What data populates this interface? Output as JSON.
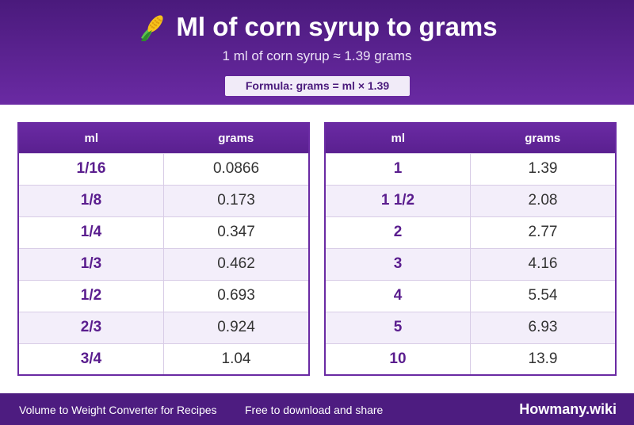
{
  "header": {
    "title": "Ml of corn syrup to grams",
    "icon": "corn-icon",
    "subtitle": "1 ml of corn syrup ≈ 1.39 grams",
    "formula": "Formula: grams = ml × 1.39"
  },
  "tables": {
    "left": {
      "headers": [
        "ml",
        "grams"
      ],
      "rows": [
        [
          "1/16",
          "0.0866"
        ],
        [
          "1/8",
          "0.173"
        ],
        [
          "1/4",
          "0.347"
        ],
        [
          "1/3",
          "0.462"
        ],
        [
          "1/2",
          "0.693"
        ],
        [
          "2/3",
          "0.924"
        ],
        [
          "3/4",
          "1.04"
        ]
      ]
    },
    "right": {
      "headers": [
        "ml",
        "grams"
      ],
      "rows": [
        [
          "1",
          "1.39"
        ],
        [
          "1 1/2",
          "2.08"
        ],
        [
          "2",
          "2.77"
        ],
        [
          "3",
          "4.16"
        ],
        [
          "4",
          "5.54"
        ],
        [
          "5",
          "6.93"
        ],
        [
          "10",
          "13.9"
        ]
      ]
    }
  },
  "footer": {
    "left": "Volume to Weight Converter for Recipes",
    "middle": "Free to download and share",
    "brand": "Howmany.wiki"
  },
  "colors": {
    "brand_purple": "#4d1c80",
    "accent_purple": "#6a2aa3",
    "row_alt": "#f3eefa"
  }
}
